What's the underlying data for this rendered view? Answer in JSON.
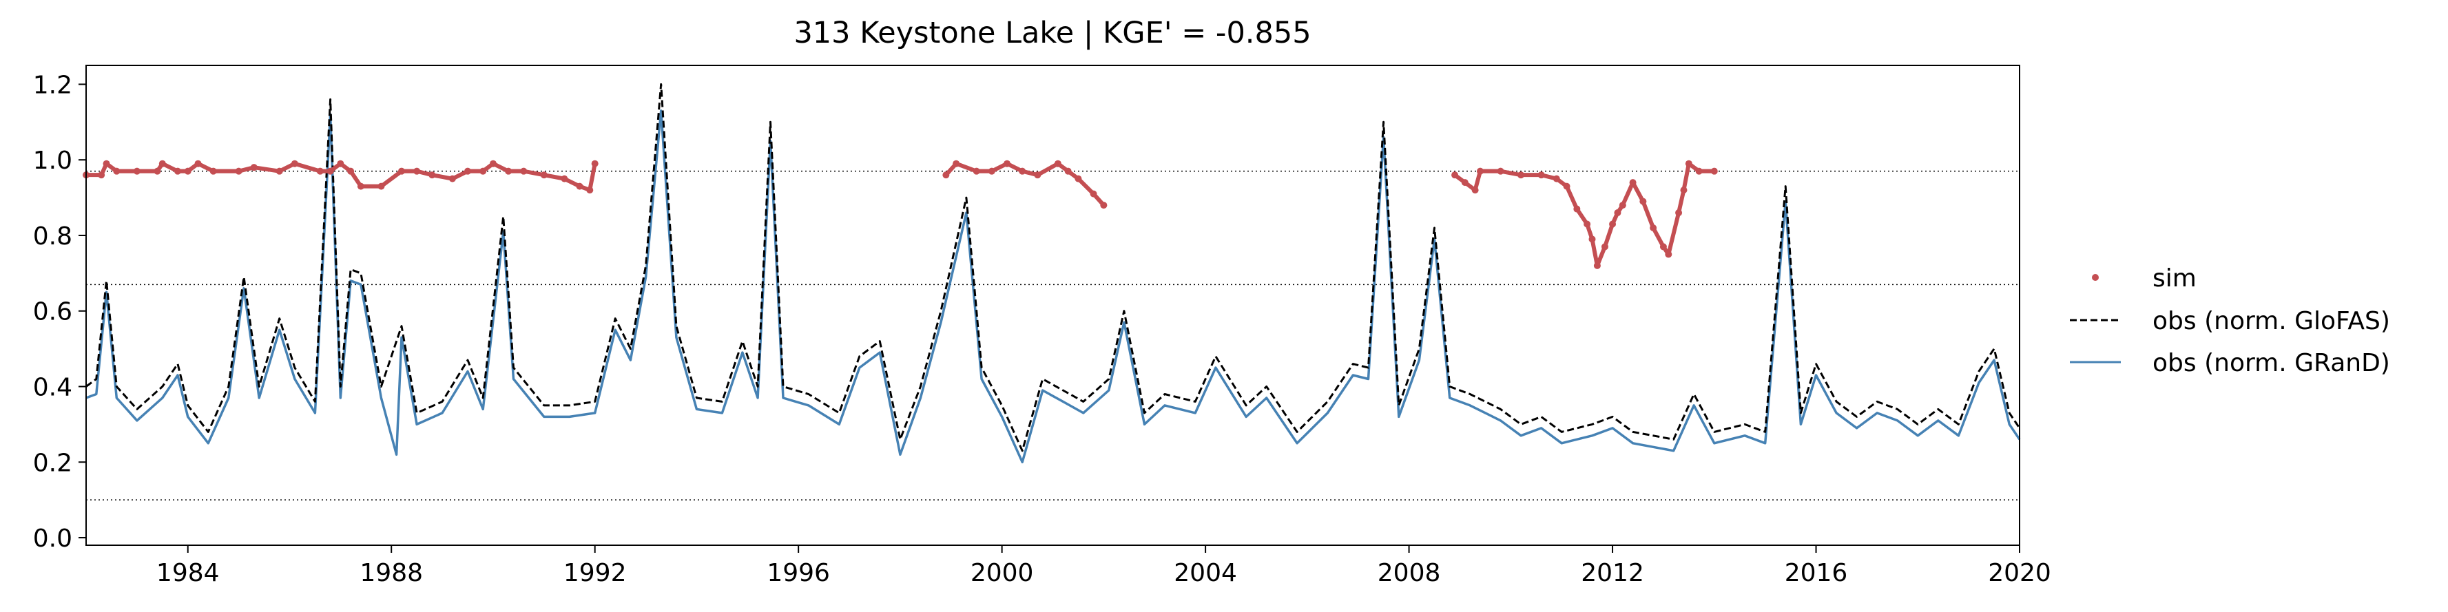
{
  "chart_data": {
    "type": "line",
    "title": "313  Keystone Lake | KGE' = -0.855",
    "xlabel": "",
    "ylabel": "",
    "xlim": [
      1982.0,
      2020.0
    ],
    "ylim": [
      -0.02,
      1.25
    ],
    "grid": false,
    "legend_position": "right, outside plot",
    "x_ticks": [
      1984,
      1988,
      1992,
      1996,
      2000,
      2004,
      2008,
      2012,
      2016,
      2020
    ],
    "x_tick_labels": [
      "1984",
      "1988",
      "1992",
      "1996",
      "2000",
      "2004",
      "2008",
      "2012",
      "2016",
      "2020"
    ],
    "y_ticks": [
      0.0,
      0.2,
      0.4,
      0.6,
      0.8,
      1.0,
      1.2
    ],
    "y_tick_labels": [
      "0.0",
      "0.2",
      "0.4",
      "0.6",
      "0.8",
      "1.0",
      "1.2"
    ],
    "reference_lines": [
      0.97,
      0.67,
      0.1
    ],
    "series": [
      {
        "name": "sim",
        "style": "points",
        "color": "#c44e52",
        "points": [
          [
            1982.0,
            0.96
          ],
          [
            1982.3,
            0.96
          ],
          [
            1982.4,
            0.99
          ],
          [
            1982.6,
            0.97
          ],
          [
            1983.0,
            0.97
          ],
          [
            1983.4,
            0.97
          ],
          [
            1983.5,
            0.99
          ],
          [
            1983.8,
            0.97
          ],
          [
            1984.0,
            0.97
          ],
          [
            1984.2,
            0.99
          ],
          [
            1984.5,
            0.97
          ],
          [
            1985.0,
            0.97
          ],
          [
            1985.3,
            0.98
          ],
          [
            1985.8,
            0.97
          ],
          [
            1986.1,
            0.99
          ],
          [
            1986.6,
            0.97
          ],
          [
            1986.8,
            0.97
          ],
          [
            1987.0,
            0.99
          ],
          [
            1987.2,
            0.97
          ],
          [
            1987.4,
            0.93
          ],
          [
            1987.8,
            0.93
          ],
          [
            1988.2,
            0.97
          ],
          [
            1988.5,
            0.97
          ],
          [
            1988.8,
            0.96
          ],
          [
            1989.2,
            0.95
          ],
          [
            1989.5,
            0.97
          ],
          [
            1989.8,
            0.97
          ],
          [
            1990.0,
            0.99
          ],
          [
            1990.3,
            0.97
          ],
          [
            1990.6,
            0.97
          ],
          [
            1991.0,
            0.96
          ],
          [
            1991.4,
            0.95
          ],
          [
            1991.7,
            0.93
          ],
          [
            1991.9,
            0.92
          ],
          [
            1992.0,
            0.99
          ],
          [
            1998.9,
            0.96
          ],
          [
            1999.1,
            0.99
          ],
          [
            1999.5,
            0.97
          ],
          [
            1999.8,
            0.97
          ],
          [
            2000.1,
            0.99
          ],
          [
            2000.4,
            0.97
          ],
          [
            2000.7,
            0.96
          ],
          [
            2001.1,
            0.99
          ],
          [
            2001.3,
            0.97
          ],
          [
            2001.5,
            0.95
          ],
          [
            2001.8,
            0.91
          ],
          [
            2002.0,
            0.88
          ],
          [
            2008.9,
            0.96
          ],
          [
            2009.1,
            0.94
          ],
          [
            2009.3,
            0.92
          ],
          [
            2009.4,
            0.97
          ],
          [
            2009.8,
            0.97
          ],
          [
            2010.2,
            0.96
          ],
          [
            2010.6,
            0.96
          ],
          [
            2010.9,
            0.95
          ],
          [
            2011.1,
            0.93
          ],
          [
            2011.3,
            0.87
          ],
          [
            2011.5,
            0.83
          ],
          [
            2011.6,
            0.79
          ],
          [
            2011.7,
            0.72
          ],
          [
            2011.85,
            0.77
          ],
          [
            2012.0,
            0.83
          ],
          [
            2012.1,
            0.86
          ],
          [
            2012.2,
            0.88
          ],
          [
            2012.4,
            0.94
          ],
          [
            2012.6,
            0.89
          ],
          [
            2012.8,
            0.82
          ],
          [
            2013.0,
            0.77
          ],
          [
            2013.1,
            0.75
          ],
          [
            2013.3,
            0.86
          ],
          [
            2013.4,
            0.92
          ],
          [
            2013.5,
            0.99
          ],
          [
            2013.7,
            0.97
          ],
          [
            2014.0,
            0.97
          ]
        ]
      },
      {
        "name": "obs (norm. GloFAS)",
        "style": "dashed",
        "color": "#000000",
        "points": [
          [
            1982.0,
            0.4
          ],
          [
            1982.2,
            0.42
          ],
          [
            1982.4,
            0.68
          ],
          [
            1982.6,
            0.4
          ],
          [
            1983.0,
            0.34
          ],
          [
            1983.5,
            0.4
          ],
          [
            1983.8,
            0.46
          ],
          [
            1984.0,
            0.35
          ],
          [
            1984.4,
            0.28
          ],
          [
            1984.8,
            0.4
          ],
          [
            1985.1,
            0.69
          ],
          [
            1985.4,
            0.4
          ],
          [
            1985.8,
            0.58
          ],
          [
            1986.1,
            0.45
          ],
          [
            1986.5,
            0.36
          ],
          [
            1986.8,
            1.16
          ],
          [
            1987.0,
            0.4
          ],
          [
            1987.2,
            0.71
          ],
          [
            1987.4,
            0.7
          ],
          [
            1987.8,
            0.4
          ],
          [
            1988.2,
            0.56
          ],
          [
            1988.5,
            0.33
          ],
          [
            1989.0,
            0.36
          ],
          [
            1989.5,
            0.47
          ],
          [
            1989.8,
            0.37
          ],
          [
            1990.2,
            0.85
          ],
          [
            1990.4,
            0.45
          ],
          [
            1991.0,
            0.35
          ],
          [
            1991.5,
            0.35
          ],
          [
            1992.0,
            0.36
          ],
          [
            1992.4,
            0.58
          ],
          [
            1992.7,
            0.5
          ],
          [
            1993.0,
            0.72
          ],
          [
            1993.3,
            1.2
          ],
          [
            1993.6,
            0.56
          ],
          [
            1994.0,
            0.37
          ],
          [
            1994.5,
            0.36
          ],
          [
            1994.9,
            0.52
          ],
          [
            1995.2,
            0.4
          ],
          [
            1995.45,
            1.1
          ],
          [
            1995.7,
            0.4
          ],
          [
            1996.2,
            0.38
          ],
          [
            1996.8,
            0.33
          ],
          [
            1997.2,
            0.48
          ],
          [
            1997.6,
            0.52
          ],
          [
            1998.0,
            0.26
          ],
          [
            1998.4,
            0.4
          ],
          [
            1998.8,
            0.6
          ],
          [
            1999.3,
            0.9
          ],
          [
            1999.6,
            0.45
          ],
          [
            2000.0,
            0.35
          ],
          [
            2000.4,
            0.23
          ],
          [
            2000.8,
            0.42
          ],
          [
            2001.2,
            0.39
          ],
          [
            2001.6,
            0.36
          ],
          [
            2002.1,
            0.42
          ],
          [
            2002.4,
            0.6
          ],
          [
            2002.8,
            0.33
          ],
          [
            2003.2,
            0.38
          ],
          [
            2003.8,
            0.36
          ],
          [
            2004.2,
            0.48
          ],
          [
            2004.8,
            0.35
          ],
          [
            2005.2,
            0.4
          ],
          [
            2005.8,
            0.28
          ],
          [
            2006.4,
            0.36
          ],
          [
            2006.9,
            0.46
          ],
          [
            2007.2,
            0.45
          ],
          [
            2007.5,
            1.1
          ],
          [
            2007.8,
            0.35
          ],
          [
            2008.2,
            0.5
          ],
          [
            2008.5,
            0.82
          ],
          [
            2008.8,
            0.4
          ],
          [
            2009.2,
            0.38
          ],
          [
            2009.8,
            0.34
          ],
          [
            2010.2,
            0.3
          ],
          [
            2010.6,
            0.32
          ],
          [
            2011.0,
            0.28
          ],
          [
            2011.6,
            0.3
          ],
          [
            2012.0,
            0.32
          ],
          [
            2012.4,
            0.28
          ],
          [
            2012.8,
            0.27
          ],
          [
            2013.2,
            0.26
          ],
          [
            2013.6,
            0.38
          ],
          [
            2014.0,
            0.28
          ],
          [
            2014.6,
            0.3
          ],
          [
            2015.0,
            0.28
          ],
          [
            2015.4,
            0.93
          ],
          [
            2015.7,
            0.33
          ],
          [
            2016.0,
            0.46
          ],
          [
            2016.4,
            0.36
          ],
          [
            2016.8,
            0.32
          ],
          [
            2017.2,
            0.36
          ],
          [
            2017.6,
            0.34
          ],
          [
            2018.0,
            0.3
          ],
          [
            2018.4,
            0.34
          ],
          [
            2018.8,
            0.3
          ],
          [
            2019.2,
            0.44
          ],
          [
            2019.5,
            0.5
          ],
          [
            2019.8,
            0.33
          ],
          [
            2020.0,
            0.29
          ]
        ]
      },
      {
        "name": "obs (norm. GRanD)",
        "style": "solid",
        "color": "#4682b4",
        "points": [
          [
            1982.0,
            0.37
          ],
          [
            1982.2,
            0.38
          ],
          [
            1982.4,
            0.65
          ],
          [
            1982.6,
            0.37
          ],
          [
            1983.0,
            0.31
          ],
          [
            1983.5,
            0.37
          ],
          [
            1983.8,
            0.43
          ],
          [
            1984.0,
            0.32
          ],
          [
            1984.4,
            0.25
          ],
          [
            1984.8,
            0.37
          ],
          [
            1985.1,
            0.66
          ],
          [
            1985.4,
            0.37
          ],
          [
            1985.8,
            0.55
          ],
          [
            1986.1,
            0.42
          ],
          [
            1986.5,
            0.33
          ],
          [
            1986.8,
            1.12
          ],
          [
            1987.0,
            0.37
          ],
          [
            1987.2,
            0.68
          ],
          [
            1987.4,
            0.67
          ],
          [
            1987.8,
            0.37
          ],
          [
            1988.1,
            0.22
          ],
          [
            1988.2,
            0.53
          ],
          [
            1988.5,
            0.3
          ],
          [
            1989.0,
            0.33
          ],
          [
            1989.5,
            0.44
          ],
          [
            1989.8,
            0.34
          ],
          [
            1990.2,
            0.81
          ],
          [
            1990.4,
            0.42
          ],
          [
            1991.0,
            0.32
          ],
          [
            1991.5,
            0.32
          ],
          [
            1992.0,
            0.33
          ],
          [
            1992.4,
            0.55
          ],
          [
            1992.7,
            0.47
          ],
          [
            1993.0,
            0.69
          ],
          [
            1993.3,
            1.13
          ],
          [
            1993.6,
            0.53
          ],
          [
            1994.0,
            0.34
          ],
          [
            1994.5,
            0.33
          ],
          [
            1994.9,
            0.49
          ],
          [
            1995.2,
            0.37
          ],
          [
            1995.45,
            1.05
          ],
          [
            1995.7,
            0.37
          ],
          [
            1996.2,
            0.35
          ],
          [
            1996.8,
            0.3
          ],
          [
            1997.2,
            0.45
          ],
          [
            1997.6,
            0.49
          ],
          [
            1998.0,
            0.22
          ],
          [
            1998.4,
            0.37
          ],
          [
            1998.8,
            0.57
          ],
          [
            1999.3,
            0.86
          ],
          [
            1999.6,
            0.42
          ],
          [
            2000.0,
            0.32
          ],
          [
            2000.4,
            0.2
          ],
          [
            2000.8,
            0.39
          ],
          [
            2001.2,
            0.36
          ],
          [
            2001.6,
            0.33
          ],
          [
            2002.1,
            0.39
          ],
          [
            2002.4,
            0.57
          ],
          [
            2002.8,
            0.3
          ],
          [
            2003.2,
            0.35
          ],
          [
            2003.8,
            0.33
          ],
          [
            2004.2,
            0.45
          ],
          [
            2004.8,
            0.32
          ],
          [
            2005.2,
            0.37
          ],
          [
            2005.8,
            0.25
          ],
          [
            2006.4,
            0.33
          ],
          [
            2006.9,
            0.43
          ],
          [
            2007.2,
            0.42
          ],
          [
            2007.5,
            1.06
          ],
          [
            2007.8,
            0.32
          ],
          [
            2008.2,
            0.47
          ],
          [
            2008.5,
            0.79
          ],
          [
            2008.8,
            0.37
          ],
          [
            2009.2,
            0.35
          ],
          [
            2009.8,
            0.31
          ],
          [
            2010.2,
            0.27
          ],
          [
            2010.6,
            0.29
          ],
          [
            2011.0,
            0.25
          ],
          [
            2011.6,
            0.27
          ],
          [
            2012.0,
            0.29
          ],
          [
            2012.4,
            0.25
          ],
          [
            2012.8,
            0.24
          ],
          [
            2013.2,
            0.23
          ],
          [
            2013.6,
            0.35
          ],
          [
            2014.0,
            0.25
          ],
          [
            2014.6,
            0.27
          ],
          [
            2015.0,
            0.25
          ],
          [
            2015.4,
            0.89
          ],
          [
            2015.7,
            0.3
          ],
          [
            2016.0,
            0.43
          ],
          [
            2016.4,
            0.33
          ],
          [
            2016.8,
            0.29
          ],
          [
            2017.2,
            0.33
          ],
          [
            2017.6,
            0.31
          ],
          [
            2018.0,
            0.27
          ],
          [
            2018.4,
            0.31
          ],
          [
            2018.8,
            0.27
          ],
          [
            2019.2,
            0.41
          ],
          [
            2019.5,
            0.47
          ],
          [
            2019.8,
            0.3
          ],
          [
            2020.0,
            0.26
          ]
        ]
      }
    ]
  }
}
